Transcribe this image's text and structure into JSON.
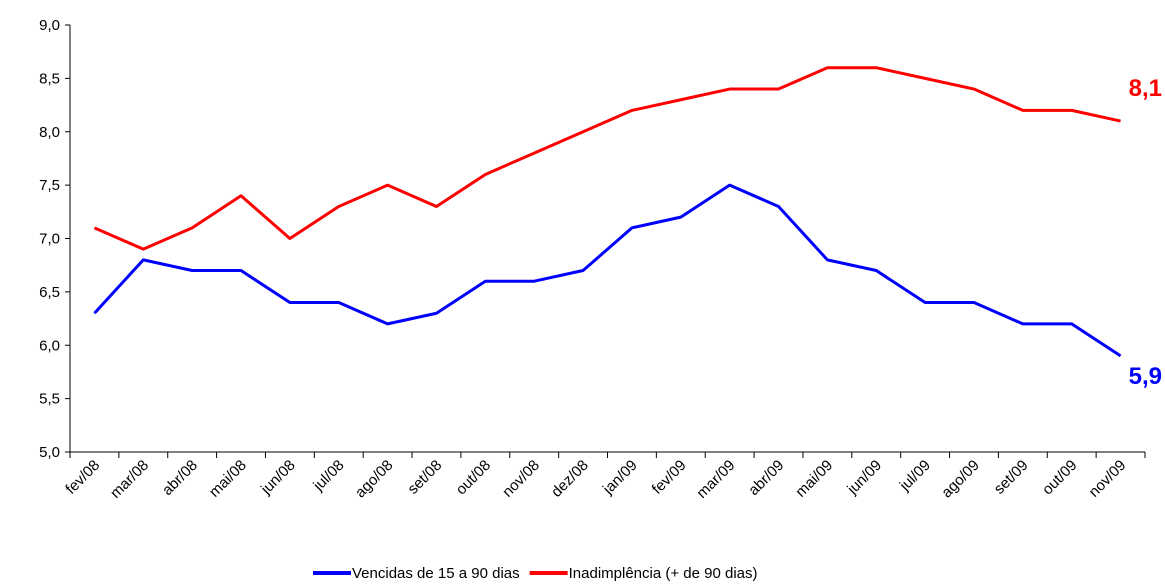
{
  "chart_data": {
    "type": "line",
    "categories": [
      "fev/08",
      "mar/08",
      "abr/08",
      "mai/08",
      "jun/08",
      "jul/08",
      "ago/08",
      "set/08",
      "out/08",
      "nov/08",
      "dez/08",
      "jan/09",
      "fev/09",
      "mar/09",
      "abr/09",
      "mai/09",
      "jun/09",
      "jul/09",
      "ago/09",
      "set/09",
      "out/09",
      "nov/09"
    ],
    "series": [
      {
        "name": "Vencidas de 15 a 90 dias",
        "color": "#0000ff",
        "values": [
          6.3,
          6.8,
          6.7,
          6.7,
          6.4,
          6.4,
          6.2,
          6.3,
          6.6,
          6.6,
          6.7,
          7.1,
          7.2,
          7.5,
          7.3,
          6.8,
          6.7,
          6.4,
          6.4,
          6.2,
          6.2,
          5.9
        ],
        "value_labels": [
          null,
          null,
          null,
          null,
          null,
          null,
          null,
          null,
          null,
          null,
          null,
          null,
          null,
          null,
          null,
          null,
          null,
          null,
          null,
          null,
          null,
          "5,9"
        ]
      },
      {
        "name": "Inadimplência (+ de 90 dias)",
        "color": "#ff0000",
        "values": [
          7.1,
          6.9,
          7.1,
          7.4,
          7.0,
          7.3,
          7.5,
          7.3,
          7.6,
          7.8,
          8.0,
          8.2,
          8.3,
          8.4,
          8.4,
          8.6,
          8.6,
          8.5,
          8.4,
          8.2,
          8.2,
          8.1
        ],
        "value_labels": [
          null,
          null,
          null,
          null,
          null,
          null,
          null,
          null,
          null,
          null,
          null,
          null,
          null,
          null,
          null,
          null,
          null,
          null,
          null,
          null,
          null,
          "8,1"
        ]
      }
    ],
    "ylim": [
      5,
      9
    ],
    "yticks": [
      {
        "value": 5,
        "label": "5,0"
      },
      {
        "value": 5.5,
        "label": "5,5"
      },
      {
        "value": 6,
        "label": "6,0"
      },
      {
        "value": 6.5,
        "label": "6,5"
      },
      {
        "value": 7,
        "label": "7,0"
      },
      {
        "value": 7.5,
        "label": "7,5"
      },
      {
        "value": 8,
        "label": "8,0"
      },
      {
        "value": 8.5,
        "label": "8,5"
      },
      {
        "value": 9,
        "label": "9,0"
      }
    ],
    "legend": "bottom"
  }
}
